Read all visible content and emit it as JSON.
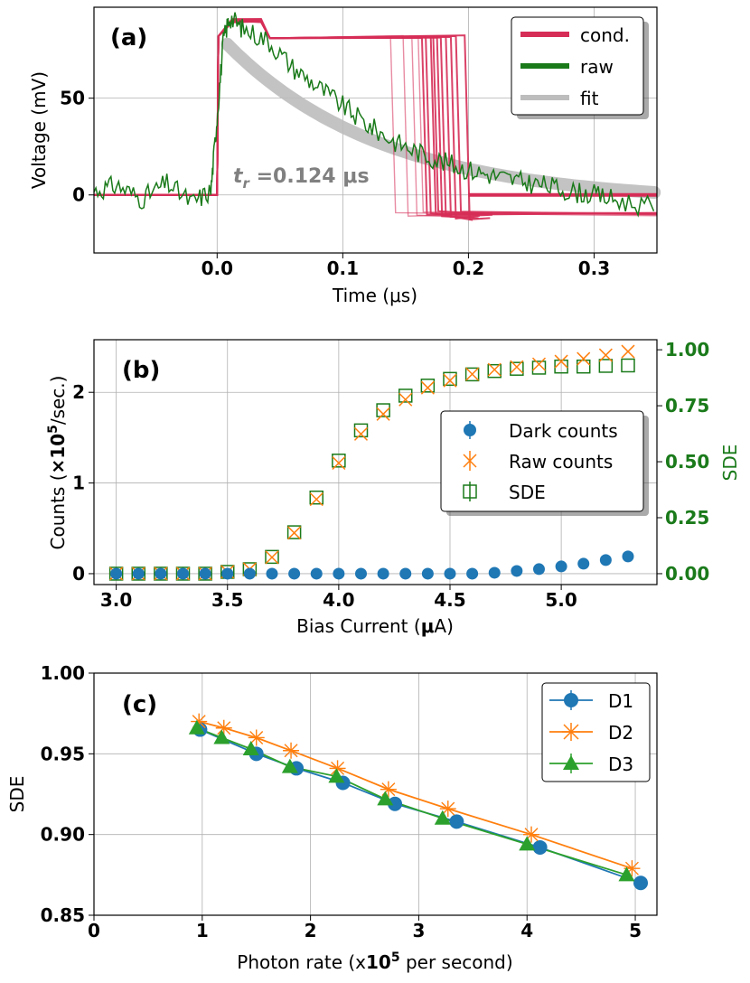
{
  "chart_data": [
    {
      "type": "line",
      "panel_label": "(a)",
      "title": "",
      "xlabel": "Time (μs)",
      "ylabel": "Voltage (mV)",
      "xlim": [
        -0.098,
        0.35
      ],
      "ylim": [
        -30,
        97
      ],
      "xticks": [
        0.0,
        0.1,
        0.2,
        0.3
      ],
      "xtick_labels": [
        "0.0",
        "0.1",
        "0.2",
        "0.3"
      ],
      "yticks": [
        0,
        50
      ],
      "ytick_labels": [
        "0",
        "50"
      ],
      "grid": true,
      "legend": [
        "cond.",
        "raw",
        "fit"
      ],
      "legend_position": "top-right",
      "annotation": {
        "label": "t",
        "sub": "r",
        "value": " =0.124 μs"
      },
      "colors": {
        "cond": "#d62d57",
        "raw": "#1a7a1a",
        "fit": "#bdbdbd"
      },
      "series": [
        {
          "name": "cond.",
          "type": "step",
          "x": [
            -0.098,
            0.0,
            0.0,
            0.012,
            0.035,
            0.04,
            0.14,
            0.16,
            0.15,
            0.17,
            0.2,
            0.22
          ],
          "y": [
            0,
            0,
            82,
            90,
            90,
            82,
            82,
            82,
            -10,
            -12,
            -10,
            -10
          ],
          "fall_times": [
            0.138,
            0.148,
            0.155,
            0.16,
            0.163,
            0.166,
            0.17,
            0.172,
            0.175,
            0.178,
            0.182,
            0.186,
            0.19,
            0.197
          ]
        },
        {
          "name": "raw",
          "x": [
            -0.098,
            -0.08,
            -0.06,
            -0.04,
            -0.02,
            -0.005,
            0.0,
            0.005,
            0.01,
            0.02,
            0.04,
            0.06,
            0.08,
            0.1,
            0.12,
            0.14,
            0.16,
            0.18,
            0.2,
            0.22,
            0.24,
            0.26,
            0.28,
            0.3,
            0.32,
            0.35
          ],
          "y": [
            2,
            5,
            -2,
            6,
            -4,
            2,
            40,
            80,
            92,
            86,
            80,
            66,
            56,
            46,
            36,
            28,
            22,
            17,
            13,
            10,
            7,
            5,
            2,
            0,
            -3,
            -7
          ]
        },
        {
          "name": "fit",
          "tau": 0.124,
          "amplitude": 82,
          "start": 0.008,
          "end": 0.35
        }
      ]
    },
    {
      "type": "scatter",
      "panel_label": "(b)",
      "title": "",
      "xlabel": "Bias Current (μA)",
      "ylabel": "Counts (×10⁵/sec.)",
      "ylabel_right": "SDE",
      "xlim": [
        2.9,
        5.43
      ],
      "ylim": [
        -0.12,
        2.58
      ],
      "ylim_right": [
        -0.0486,
        1.0449
      ],
      "xticks": [
        3.0,
        3.5,
        4.0,
        4.5,
        5.0
      ],
      "xtick_labels": [
        "3.0",
        "3.5",
        "4.0",
        "4.5",
        "5.0"
      ],
      "yticks": [
        0,
        1,
        2
      ],
      "ytick_labels": [
        "0",
        "1",
        "2"
      ],
      "yticks_right": [
        0.0,
        0.25,
        0.5,
        0.75,
        1.0
      ],
      "ytick_labels_right": [
        "0.00",
        "0.25",
        "0.50",
        "0.75",
        "1.00"
      ],
      "grid": true,
      "legend": [
        "Dark counts",
        "Raw counts",
        "SDE"
      ],
      "legend_position": "center-right",
      "colors": {
        "dark": "#1f77b4",
        "raw": "#ff7f0e",
        "sde": "#1a7a1a"
      },
      "x": [
        3.0,
        3.1,
        3.2,
        3.3,
        3.4,
        3.5,
        3.6,
        3.7,
        3.8,
        3.9,
        4.0,
        4.1,
        4.2,
        4.3,
        4.4,
        4.5,
        4.6,
        4.7,
        4.8,
        4.9,
        5.0,
        5.1,
        5.2,
        5.3
      ],
      "series": [
        {
          "name": "Dark counts",
          "values": [
            0,
            0,
            0,
            0,
            0,
            0,
            0,
            0,
            0,
            0,
            0,
            0,
            0,
            0,
            0,
            0,
            0,
            0.01,
            0.03,
            0.05,
            0.08,
            0.11,
            0.15,
            0.19
          ]
        },
        {
          "name": "Raw counts",
          "values": [
            0,
            0,
            0,
            0,
            0,
            0.02,
            0.05,
            0.18,
            0.45,
            0.82,
            1.22,
            1.54,
            1.76,
            1.92,
            2.05,
            2.13,
            2.2,
            2.25,
            2.28,
            2.31,
            2.34,
            2.37,
            2.41,
            2.45
          ]
        },
        {
          "name": "SDE",
          "values": [
            0,
            0,
            0,
            0,
            0,
            0.008,
            0.02,
            0.075,
            0.185,
            0.34,
            0.505,
            0.64,
            0.73,
            0.795,
            0.84,
            0.87,
            0.89,
            0.905,
            0.915,
            0.92,
            0.925,
            0.925,
            0.928,
            0.93
          ]
        }
      ]
    },
    {
      "type": "line",
      "panel_label": "(c)",
      "title": "",
      "xlabel": "Photon rate (x10⁵ per second)",
      "ylabel": "SDE",
      "xlim": [
        0,
        5.2
      ],
      "ylim": [
        0.85,
        1.0
      ],
      "xticks": [
        0,
        1,
        2,
        3,
        4,
        5
      ],
      "xtick_labels": [
        "0",
        "1",
        "2",
        "3",
        "4",
        "5"
      ],
      "yticks": [
        0.85,
        0.9,
        0.95,
        1.0
      ],
      "ytick_labels": [
        "0.85",
        "0.90",
        "0.95",
        "1.00"
      ],
      "grid": true,
      "legend": [
        "D1",
        "D2",
        "D3"
      ],
      "legend_position": "top-right",
      "colors": {
        "D1": "#1f77b4",
        "D2": "#ff7f0e",
        "D3": "#2ca02c"
      },
      "series": [
        {
          "name": "D1",
          "x": [
            0.98,
            1.5,
            1.87,
            2.3,
            2.78,
            3.35,
            4.12,
            5.05
          ],
          "values": [
            0.965,
            0.95,
            0.941,
            0.932,
            0.919,
            0.908,
            0.892,
            0.87
          ]
        },
        {
          "name": "D2",
          "x": [
            0.97,
            1.2,
            1.5,
            1.82,
            2.25,
            2.72,
            3.27,
            4.04,
            4.97
          ],
          "values": [
            0.97,
            0.966,
            0.96,
            0.952,
            0.941,
            0.928,
            0.916,
            0.9,
            0.879
          ]
        },
        {
          "name": "D3",
          "x": [
            0.95,
            1.18,
            1.45,
            1.81,
            2.24,
            2.69,
            3.22,
            4.0,
            4.92
          ],
          "values": [
            0.966,
            0.96,
            0.953,
            0.942,
            0.936,
            0.922,
            0.91,
            0.894,
            0.875
          ]
        }
      ]
    }
  ]
}
